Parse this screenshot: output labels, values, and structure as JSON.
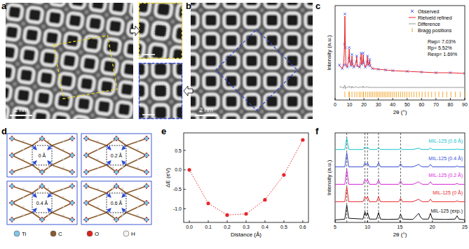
{
  "figure": {
    "panel_labels": [
      "a",
      "b",
      "c",
      "d",
      "e",
      "f"
    ],
    "scale_bars": [
      "2 nm",
      "2 nm"
    ],
    "structures": [
      "0 Å",
      "0.2 Å",
      "0.4 Å",
      "0.6 Å"
    ],
    "atoms": [
      {
        "label": "Ti",
        "color": "#7ec8e8"
      },
      {
        "label": "C",
        "color": "#8b5a2b"
      },
      {
        "label": "O",
        "color": "#e0201b"
      },
      {
        "label": "H",
        "color": "#f4f4f4"
      }
    ]
  },
  "chart_data": [
    {
      "type": "line",
      "xlabel": "2θ (°)",
      "ylabel": "Intensity (a.u.)",
      "xlim": [
        0,
        90
      ],
      "xticks": [
        0,
        10,
        20,
        30,
        40,
        50,
        60,
        70,
        80,
        90
      ],
      "ylim": [
        -0.25,
        1.1
      ],
      "tick_labels": "x",
      "legend": "upper right",
      "annotations": [
        "Rwp= 7.03%",
        "Rp= 5.52%",
        "Rexp= 1.69%"
      ],
      "x": [
        3,
        5,
        6,
        6.5,
        6.8,
        7.1,
        7.5,
        8.5,
        9.5,
        9.8,
        10.1,
        11,
        11.5,
        11.7,
        12,
        13,
        14.7,
        15,
        15.3,
        17,
        17.8,
        18.1,
        18.4,
        19.2,
        19.5,
        19.8,
        21,
        22.2,
        22.5,
        22.8,
        23.7,
        24,
        24.3,
        26,
        30,
        35,
        40,
        50,
        60,
        70,
        80,
        90
      ],
      "series": [
        {
          "name": "Observed",
          "type": "scatter",
          "marker": "x",
          "color": "#3848e8",
          "values": [
            0.25,
            0.2,
            0.25,
            0.55,
            0.98,
            0.5,
            0.25,
            0.22,
            0.35,
            0.5,
            0.3,
            0.24,
            0.3,
            0.4,
            0.26,
            0.22,
            0.3,
            0.38,
            0.24,
            0.22,
            0.35,
            0.42,
            0.26,
            0.3,
            0.42,
            0.28,
            0.22,
            0.3,
            0.38,
            0.25,
            0.28,
            0.33,
            0.24,
            0.2,
            0.19,
            0.18,
            0.17,
            0.16,
            0.15,
            0.14,
            0.14,
            0.13
          ]
        },
        {
          "name": "Rietveld refined",
          "type": "line",
          "color": "#e8262b",
          "values": [
            0.24,
            0.2,
            0.26,
            0.52,
            0.95,
            0.52,
            0.25,
            0.22,
            0.34,
            0.48,
            0.3,
            0.24,
            0.31,
            0.38,
            0.26,
            0.22,
            0.29,
            0.37,
            0.24,
            0.22,
            0.34,
            0.41,
            0.26,
            0.3,
            0.4,
            0.28,
            0.22,
            0.29,
            0.37,
            0.25,
            0.28,
            0.32,
            0.24,
            0.2,
            0.19,
            0.18,
            0.17,
            0.16,
            0.15,
            0.14,
            0.14,
            0.13
          ]
        },
        {
          "name": "Difference",
          "type": "line",
          "color": "#9a9a9a",
          "values": [
            -0.06,
            -0.07,
            -0.08,
            -0.04,
            -0.04,
            -0.09,
            -0.07,
            -0.07,
            -0.06,
            -0.05,
            -0.07,
            -0.07,
            -0.08,
            -0.05,
            -0.07,
            -0.07,
            -0.06,
            -0.06,
            -0.07,
            -0.07,
            -0.06,
            -0.06,
            -0.07,
            -0.07,
            -0.05,
            -0.07,
            -0.07,
            -0.06,
            -0.06,
            -0.07,
            -0.07,
            -0.06,
            -0.07,
            -0.07,
            -0.07,
            -0.07,
            -0.07,
            -0.07,
            -0.07,
            -0.07,
            -0.07,
            -0.07
          ]
        },
        {
          "name": "Bragg positions",
          "type": "scatter",
          "marker": "tick",
          "color": "#f0a020",
          "x": [
            6.8,
            9.6,
            9.9,
            11.7,
            13.6,
            15.1,
            16.7,
            17.9,
            19.4,
            19.7,
            21.2,
            22.5,
            23.8,
            24.9,
            26.1,
            27.3,
            28.5,
            29.6,
            30.7,
            31.8,
            33,
            34.1,
            35.2,
            36.4,
            37.5,
            38.7,
            40,
            41.3,
            42.6,
            44,
            45.4,
            46.8,
            48.3,
            49.8,
            51.4,
            53,
            54.7,
            56.5,
            58.4,
            60.4,
            62.5,
            64.7,
            67,
            69.5,
            72,
            74.7,
            77.5,
            80.4,
            83.5,
            86.8,
            89.9
          ],
          "values": [
            -0.17,
            -0.17,
            -0.17,
            -0.17,
            -0.17,
            -0.17,
            -0.17,
            -0.17,
            -0.17,
            -0.17,
            -0.17,
            -0.17,
            -0.17,
            -0.17,
            -0.17,
            -0.17,
            -0.17,
            -0.17,
            -0.17,
            -0.17,
            -0.17,
            -0.17,
            -0.17,
            -0.17,
            -0.17,
            -0.17,
            -0.17,
            -0.17,
            -0.17,
            -0.17,
            -0.17,
            -0.17,
            -0.17,
            -0.17,
            -0.17,
            -0.17,
            -0.17,
            -0.17,
            -0.17,
            -0.17,
            -0.17,
            -0.17,
            -0.17,
            -0.17,
            -0.17,
            -0.17,
            -0.17,
            -0.17,
            -0.17,
            -0.17,
            -0.17
          ]
        }
      ]
    },
    {
      "type": "line",
      "xlabel": "Distance (Å)",
      "ylabel": "ΔE (eV)",
      "xlim": [
        -0.03,
        0.63
      ],
      "xticks": [
        {
          "value": 0,
          "label": "0.0"
        },
        {
          "value": 0.1,
          "label": "0.1"
        },
        {
          "value": 0.2,
          "label": "0.2"
        },
        {
          "value": 0.3,
          "label": "0.3"
        },
        {
          "value": 0.4,
          "label": "0.4"
        },
        {
          "value": 0.5,
          "label": "0.5"
        },
        {
          "value": 0.6,
          "label": "0.6"
        }
      ],
      "ylim": [
        -1.35,
        0.95
      ],
      "yticks": [
        {
          "value": -1,
          "label": "-1.0"
        },
        {
          "value": -0.5,
          "label": "-0.5"
        },
        {
          "value": 0,
          "label": "0.0"
        },
        {
          "value": 0.5,
          "label": "0.5"
        }
      ],
      "x": [
        0,
        0.1,
        0.2,
        0.3,
        0.4,
        0.5,
        0.6
      ],
      "values": [
        0,
        -0.86,
        -1.16,
        -1.13,
        -0.77,
        -0.13,
        0.77
      ],
      "color": "#e8262b",
      "marker": "circle",
      "line_style": "dotted"
    },
    {
      "type": "line",
      "xlabel": "2θ (°)",
      "ylabel": "Intensity (a.u.)",
      "xlim": [
        5,
        25
      ],
      "xticks": [
        5,
        10,
        15,
        20,
        25
      ],
      "ylim": [
        -0.1,
        5.3
      ],
      "tick_labels": "x",
      "legend": "right",
      "reference_x": [
        6.8,
        9.6,
        10.0,
        11.7,
        15.1
      ],
      "x": [
        5,
        6.5,
        6.8,
        7.1,
        9.3,
        9.6,
        9.8,
        10.0,
        10.3,
        11.4,
        11.7,
        12.0,
        13,
        14.8,
        15.1,
        15.4,
        17,
        17.9,
        18.2,
        18.5,
        19.4,
        19.7,
        20.0,
        22,
        23.5,
        23.8,
        24.1,
        25
      ],
      "series": [
        {
          "name": "MIL-125 (0.6 Å)",
          "color": "#17c3cf",
          "values": [
            4.3,
            4.3,
            5.0,
            4.3,
            4.3,
            4.45,
            4.35,
            4.45,
            4.3,
            4.3,
            4.4,
            4.3,
            4.3,
            4.3,
            4.35,
            4.3,
            4.3,
            4.38,
            4.32,
            4.3,
            4.3,
            4.38,
            4.3,
            4.3,
            4.3,
            4.33,
            4.3,
            4.3
          ]
        },
        {
          "name": "MIL-125 (0.4 Å)",
          "color": "#3b4fd8",
          "values": [
            3.25,
            3.25,
            4.1,
            3.25,
            3.25,
            3.5,
            3.35,
            3.5,
            3.25,
            3.25,
            3.5,
            3.25,
            3.25,
            3.25,
            3.45,
            3.25,
            3.25,
            3.4,
            3.3,
            3.25,
            3.25,
            3.4,
            3.25,
            3.25,
            3.25,
            3.3,
            3.25,
            3.25
          ]
        },
        {
          "name": "MIL-125 (0.2 Å)",
          "color": "#d62ad6",
          "values": [
            2.2,
            2.2,
            3.1,
            2.2,
            2.2,
            2.5,
            2.35,
            2.5,
            2.2,
            2.2,
            2.45,
            2.2,
            2.2,
            2.2,
            2.4,
            2.2,
            2.2,
            2.35,
            2.25,
            2.2,
            2.2,
            2.35,
            2.2,
            2.2,
            2.2,
            2.25,
            2.2,
            2.2
          ]
        },
        {
          "name": "MIL-125 (0 Å)",
          "color": "#e8262b",
          "values": [
            1.15,
            1.15,
            2.05,
            1.15,
            1.15,
            1.45,
            1.3,
            1.45,
            1.15,
            1.15,
            1.45,
            1.15,
            1.15,
            1.15,
            1.35,
            1.15,
            1.15,
            1.3,
            1.2,
            1.15,
            1.15,
            1.3,
            1.15,
            1.15,
            1.15,
            1.2,
            1.15,
            1.15
          ]
        },
        {
          "name": "MIL-125 (exp.)",
          "color": "#111111",
          "values": [
            0.05,
            0.1,
            0.95,
            0.15,
            0.1,
            0.55,
            0.3,
            0.5,
            0.1,
            0.1,
            0.5,
            0.1,
            0.08,
            0.1,
            0.4,
            0.1,
            0.08,
            0.45,
            0.2,
            0.1,
            0.1,
            0.45,
            0.1,
            0.08,
            0.1,
            0.3,
            0.1,
            0.06
          ]
        }
      ]
    }
  ]
}
